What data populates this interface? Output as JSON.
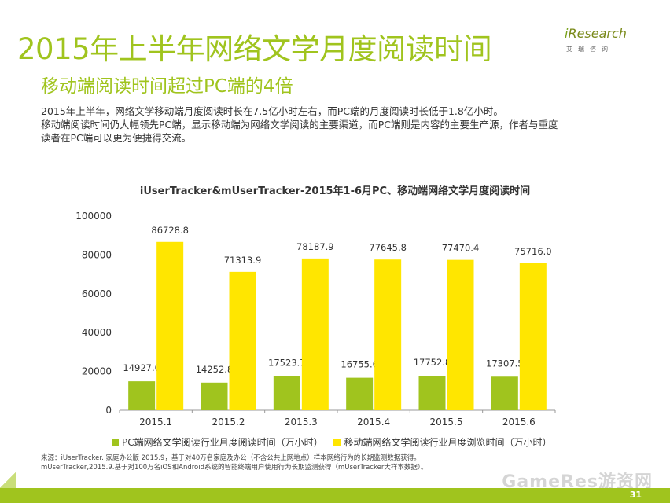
{
  "header": {
    "title": "2015年上半年网络文学月度阅读时间",
    "subtitle": "移动端阅读时间超过PC端的4倍"
  },
  "logo": {
    "main_prefix": "i",
    "main_rest": "Research",
    "sub": "艾瑞咨询"
  },
  "body_lines": [
    "2015年上半年，网络文学移动端月度阅读时长在7.5亿小时左右，而PC端的月度阅读时长低于1.8亿小时。",
    "移动端阅读时间仍大幅领先PC端，显示移动端为网络文学阅读的主要渠道，而PC端则是内容的主要生产源，作者与重度",
    "读者在PC端可以更为便捷得交流。"
  ],
  "chart_data": {
    "type": "bar",
    "title": "iUserTracker&mUserTracker-2015年1-6月PC、移动端网络文学月度阅读时间",
    "categories": [
      "2015.1",
      "2015.2",
      "2015.3",
      "2015.4",
      "2015.5",
      "2015.6"
    ],
    "series": [
      {
        "name": "PC端网络文学阅读行业月度阅读时间（万小时）",
        "color": "#a0c41e",
        "values": [
          14927.0,
          14252.8,
          17523.7,
          16755.6,
          17752.8,
          17307.5
        ],
        "labels": [
          "14927.0",
          "14252.8",
          "17523.7",
          "16755.6",
          "17752.8",
          "17307.5"
        ]
      },
      {
        "name": "移动端网络文学阅读行业月度浏览时间（万小时）",
        "color": "#ffe600",
        "values": [
          86728.8,
          71313.9,
          78187.9,
          77645.8,
          77470.4,
          75716.0
        ],
        "labels": [
          "86728.8",
          "71313.9",
          "78187.9",
          "77645.8",
          "77470.4",
          "75716.0"
        ]
      }
    ],
    "yticks": [
      "0",
      "20000",
      "40000",
      "60000",
      "80000",
      "100000"
    ],
    "ylim": [
      0,
      100000
    ],
    "legend": "bottom",
    "grid": false
  },
  "source": {
    "line1": "来源：iUserTracker. 家庭办公版 2015.9，基于对40万名家庭及办公（不含公共上网地点）样本网络行为的长期监测数据获得。",
    "line2": "mUserTracker,2015.9.基于对100万名iOS和Android系统的智能终端用户使用行为长期监测获得（mUserTracker大样本数据）。"
  },
  "watermark": "GameRes游资网",
  "page_number": "31"
}
